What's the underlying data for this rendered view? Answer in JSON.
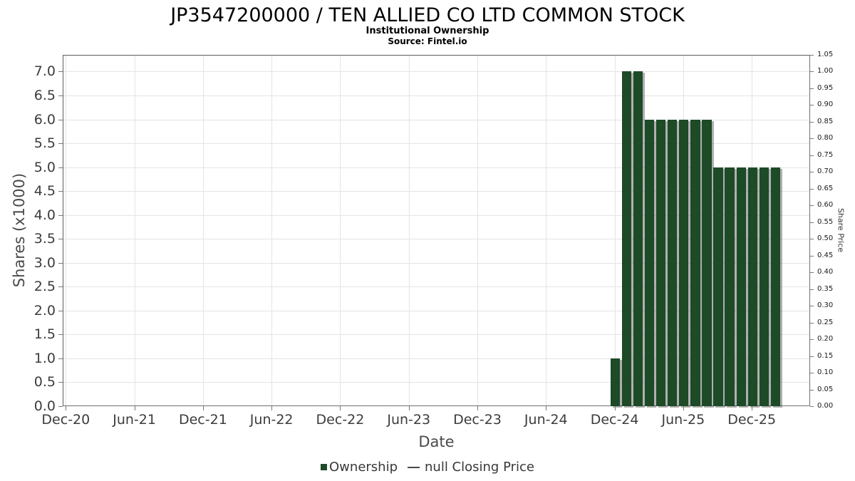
{
  "header": {
    "title": "JP3547200000 / TEN ALLIED CO LTD COMMON STOCK",
    "subtitle": "Institutional Ownership",
    "source": "Source: Fintel.io"
  },
  "legend": {
    "items": [
      {
        "label": "Ownership",
        "marker": "square",
        "color": "#1d4a27"
      },
      {
        "label": "null Closing Price",
        "marker": "line",
        "color": "#4a4a4a"
      }
    ]
  },
  "chart_data": {
    "type": "bar",
    "title": "JP3547200000 / TEN ALLIED CO LTD COMMON STOCK",
    "subtitle": "Institutional Ownership",
    "source": "Source: Fintel.io",
    "legend_position": "bottom-center",
    "grid": true,
    "bar_color": "#1d4a27",
    "bar_width_months": 0.82,
    "x_axis": {
      "label": "Date",
      "tick_labels": [
        "Dec-20",
        "Jun-21",
        "Dec-21",
        "Jun-22",
        "Dec-22",
        "Jun-23",
        "Dec-23",
        "Jun-24",
        "Dec-24",
        "Jun-25",
        "Dec-25"
      ],
      "tick_positions_months": [
        0,
        6,
        12,
        18,
        24,
        30,
        36,
        42,
        48,
        54,
        60
      ],
      "range_months": [
        -0.27,
        65.1
      ]
    },
    "y_axis": {
      "label": "Shares (x1000)",
      "tick_labels": [
        "0.0",
        "0.5",
        "1.0",
        "1.5",
        "2.0",
        "2.5",
        "3.0",
        "3.5",
        "4.0",
        "4.5",
        "5.0",
        "5.5",
        "6.0",
        "6.5",
        "7.0"
      ],
      "tick_values": [
        0,
        0.5,
        1,
        1.5,
        2,
        2.5,
        3,
        3.5,
        4,
        4.5,
        5,
        5.5,
        6,
        6.5,
        7
      ],
      "range": [
        0,
        7.35
      ]
    },
    "y2_axis": {
      "label": "Share Price",
      "tick_labels": [
        "0.00",
        "0.05",
        "0.10",
        "0.15",
        "0.20",
        "0.25",
        "0.30",
        "0.35",
        "0.40",
        "0.45",
        "0.50",
        "0.55",
        "0.60",
        "0.65",
        "0.70",
        "0.75",
        "0.80",
        "0.85",
        "0.90",
        "0.95",
        "1.00",
        "1.05"
      ],
      "tick_values": [
        0,
        0.05,
        0.1,
        0.15,
        0.2,
        0.25,
        0.3,
        0.35,
        0.4,
        0.45,
        0.5,
        0.55,
        0.6,
        0.65,
        0.7,
        0.75,
        0.8,
        0.85,
        0.9,
        0.95,
        1.0,
        1.05
      ],
      "range": [
        0,
        1.05
      ]
    },
    "series": [
      {
        "name": "Ownership",
        "type": "bar",
        "color": "#1d4a27",
        "unit": "shares x1000",
        "points": [
          {
            "date": "Dec-24",
            "month_index": 48,
            "value": 1.0
          },
          {
            "date": "Jan-25",
            "month_index": 49,
            "value": 7.0
          },
          {
            "date": "Feb-25",
            "month_index": 50,
            "value": 7.0
          },
          {
            "date": "Mar-25",
            "month_index": 51,
            "value": 6.0
          },
          {
            "date": "Apr-25",
            "month_index": 52,
            "value": 6.0
          },
          {
            "date": "May-25",
            "month_index": 53,
            "value": 6.0
          },
          {
            "date": "Jun-25",
            "month_index": 54,
            "value": 6.0
          },
          {
            "date": "Jul-25",
            "month_index": 55,
            "value": 6.0
          },
          {
            "date": "Aug-25",
            "month_index": 56,
            "value": 6.0
          },
          {
            "date": "Sep-25",
            "month_index": 57,
            "value": 5.0
          },
          {
            "date": "Oct-25",
            "month_index": 58,
            "value": 5.0
          },
          {
            "date": "Nov-25",
            "month_index": 59,
            "value": 5.0
          },
          {
            "date": "Dec-25",
            "month_index": 60,
            "value": 5.0
          },
          {
            "date": "Jan-26",
            "month_index": 61,
            "value": 5.0
          },
          {
            "date": "Feb-26",
            "month_index": 62,
            "value": 5.0
          }
        ]
      },
      {
        "name": "null Closing Price",
        "type": "line",
        "color": "#4a4a4a",
        "points": []
      }
    ]
  }
}
